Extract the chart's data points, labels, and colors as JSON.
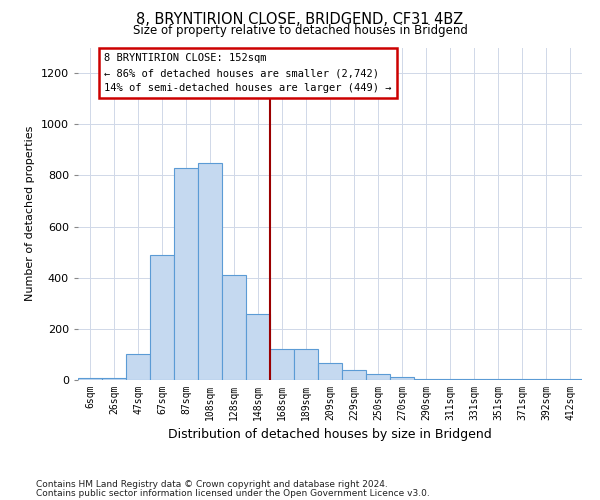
{
  "title": "8, BRYNTIRION CLOSE, BRIDGEND, CF31 4BZ",
  "subtitle": "Size of property relative to detached houses in Bridgend",
  "xlabel": "Distribution of detached houses by size in Bridgend",
  "ylabel": "Number of detached properties",
  "footnote1": "Contains HM Land Registry data © Crown copyright and database right 2024.",
  "footnote2": "Contains public sector information licensed under the Open Government Licence v3.0.",
  "annotation_title": "8 BRYNTIRION CLOSE: 152sqm",
  "annotation_line1": "← 86% of detached houses are smaller (2,742)",
  "annotation_line2": "14% of semi-detached houses are larger (449) →",
  "bar_color": "#c5d9f0",
  "bar_edge_color": "#5b9bd5",
  "vline_color": "#9b0000",
  "annotation_box_edgecolor": "#cc0000",
  "categories": [
    "6sqm",
    "26sqm",
    "47sqm",
    "67sqm",
    "87sqm",
    "108sqm",
    "128sqm",
    "148sqm",
    "168sqm",
    "189sqm",
    "209sqm",
    "229sqm",
    "250sqm",
    "270sqm",
    "290sqm",
    "311sqm",
    "331sqm",
    "351sqm",
    "371sqm",
    "392sqm",
    "412sqm"
  ],
  "values": [
    8,
    8,
    100,
    490,
    830,
    850,
    410,
    260,
    120,
    120,
    65,
    40,
    25,
    12,
    5,
    2,
    2,
    2,
    5,
    2,
    2
  ],
  "ylim": [
    0,
    1300
  ],
  "yticks": [
    0,
    200,
    400,
    600,
    800,
    1000,
    1200
  ],
  "vline_x_idx": 7,
  "background_color": "#ffffff",
  "grid_color": "#d0d8e8"
}
